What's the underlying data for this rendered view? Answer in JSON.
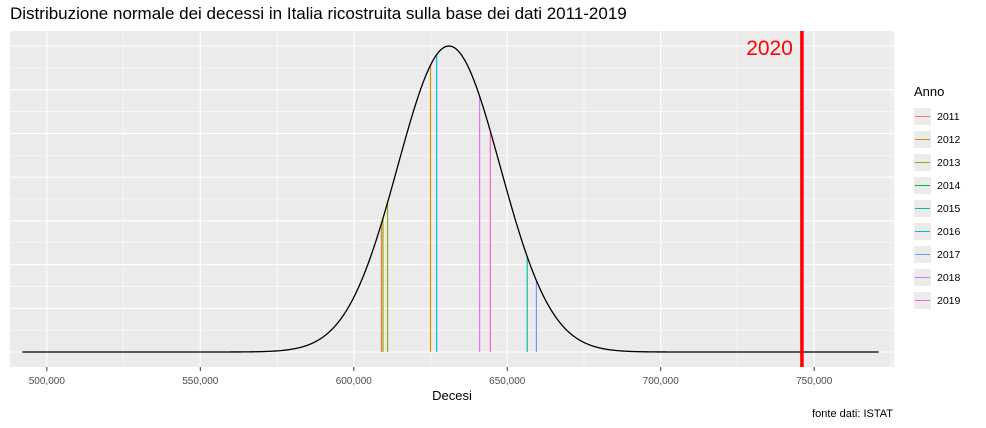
{
  "chart_data": {
    "type": "line",
    "title": "Distribuzione normale dei decessi in Italia ricostruita sulla base dei dati 2011-2019",
    "xlabel": "Decesi",
    "ylabel": "",
    "caption": "fonte dati: ISTAT",
    "xlim": [
      488000,
      776000
    ],
    "x_ticks": [
      500000,
      550000,
      600000,
      650000,
      700000,
      750000
    ],
    "x_tick_labels": [
      "500,000",
      "550,000",
      "600,000",
      "650,000",
      "700,000",
      "750,000"
    ],
    "grid": true,
    "y_tick_labels_shown": false,
    "curve": {
      "distribution": "normal",
      "mean": 631000,
      "sd": 16700,
      "x_range": [
        492000,
        771000
      ],
      "color": "#000000"
    },
    "legend": {
      "title": "Anno",
      "placement": "right",
      "items": [
        {
          "label": "2011",
          "color": "#F8766D"
        },
        {
          "label": "2012",
          "color": "#D39200"
        },
        {
          "label": "2013",
          "color": "#93AA00"
        },
        {
          "label": "2014",
          "color": "#00BA38"
        },
        {
          "label": "2015",
          "color": "#00C19F"
        },
        {
          "label": "2016",
          "color": "#00B9E3"
        },
        {
          "label": "2017",
          "color": "#619CFF"
        },
        {
          "label": "2018",
          "color": "#DB72FB"
        },
        {
          "label": "2019",
          "color": "#FF61C3"
        }
      ]
    },
    "series": [
      {
        "name": "2011",
        "x": 609000,
        "color": "#F8766D"
      },
      {
        "name": "2012",
        "x": 625000,
        "color": "#D39200"
      },
      {
        "name": "2013",
        "x": 609500,
        "color": "#93AA00"
      },
      {
        "name": "2014",
        "x": 611000,
        "color": "#93AA00"
      },
      {
        "name": "2015",
        "x": 656500,
        "color": "#00C19F"
      },
      {
        "name": "2016",
        "x": 627000,
        "color": "#00B9E3"
      },
      {
        "name": "2017",
        "x": 659500,
        "color": "#619CFF"
      },
      {
        "name": "2018",
        "x": 641000,
        "color": "#DB72FB"
      },
      {
        "name": "2019",
        "x": 644500,
        "color": "#FF61C3"
      }
    ],
    "reference_line": {
      "label": "2020",
      "x": 746000,
      "color": "#FF0000"
    }
  }
}
